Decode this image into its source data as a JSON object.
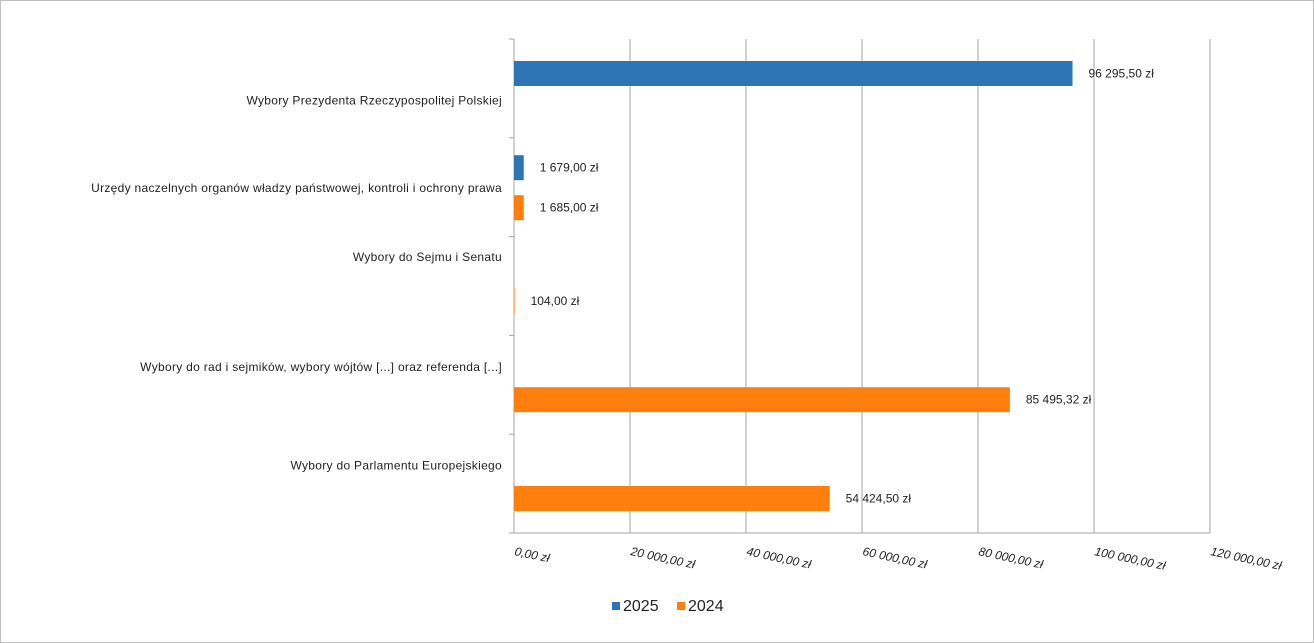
{
  "chart_data": {
    "type": "bar",
    "orientation": "horizontal",
    "categories": [
      "Wybory Prezydenta Rzeczypospolitej Polskiej",
      "Urzędy naczelnych organów władzy państwowej, kontroli i ochrony prawa",
      "Wybory do Sejmu i Senatu",
      "Wybory do rad i sejmików,  wybory wójtów [...] oraz referenda [...]",
      "Wybory do Parlamentu Europejskiego"
    ],
    "series": [
      {
        "name": "2025",
        "color": "#2e75b6",
        "values": [
          96295.5,
          1679.0,
          null,
          null,
          null
        ],
        "labels": [
          "96 295,50  zł",
          "1 679,00  zł",
          "",
          "",
          ""
        ]
      },
      {
        "name": "2024",
        "color": "#ff7f0e",
        "values": [
          null,
          1685.0,
          104.0,
          85495.32,
          54424.5
        ],
        "labels": [
          "",
          "1 685,00  zł",
          "104,00  zł",
          "85 495,32  zł",
          "54 424,50  zł"
        ]
      }
    ],
    "xlim": [
      0,
      120000
    ],
    "xticks": [
      0,
      20000,
      40000,
      60000,
      80000,
      100000,
      120000
    ],
    "xtick_labels": [
      "0,00 zł",
      "20 000,00 zł",
      "40 000,00 zł",
      "60 000,00 zł",
      "80 000,00 zł",
      "100 000,00 zł",
      "120 000,00 zł"
    ],
    "grid": true,
    "legend_position": "bottom",
    "title": "",
    "xlabel": "",
    "ylabel": ""
  }
}
